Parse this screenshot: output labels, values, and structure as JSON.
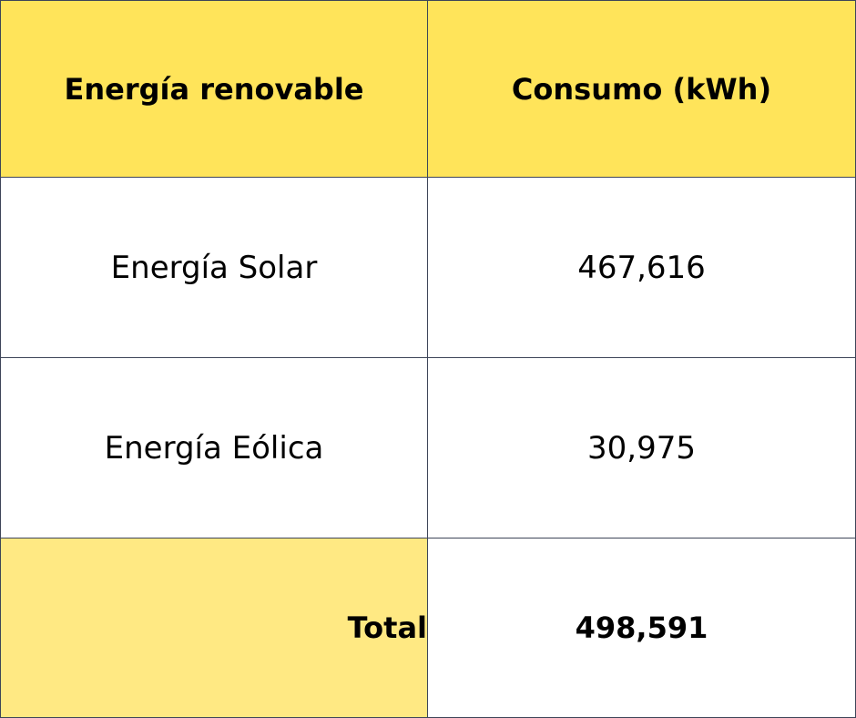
{
  "table": {
    "headers": [
      "Energía renovable",
      "Consumo (kWh)"
    ],
    "rows": [
      [
        "Energía Solar",
        "467,616"
      ],
      [
        "Energía Eólica",
        "30,975"
      ]
    ],
    "total": {
      "label": "Total",
      "value": "498,591"
    }
  },
  "colors": {
    "header_bg": "#ffe45a",
    "total_label_bg": "#ffe983",
    "border": "#3e4558",
    "text": "#000000"
  }
}
